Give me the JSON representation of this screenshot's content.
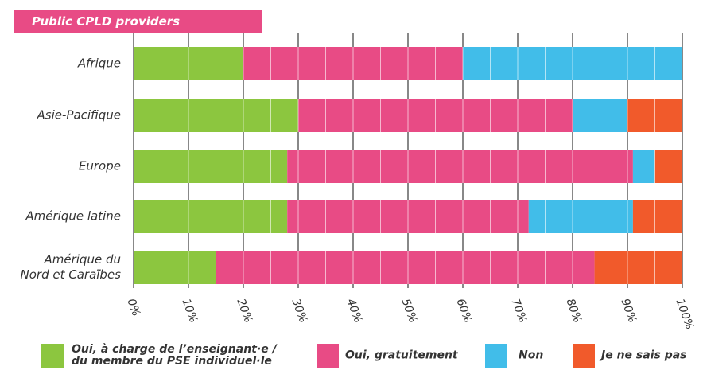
{
  "chart_data": {
    "type": "bar",
    "orientation": "horizontal",
    "stacked": true,
    "title": "Public CPLD providers",
    "categories": [
      "Afrique",
      "Asie-Pacifique",
      "Europe",
      "Amérique latine",
      "Amérique du\nNord et Caraïbes"
    ],
    "series": [
      {
        "name": "Oui, à charge de l’enseignant·e /\ndu membre du PSE individuel·le",
        "color": "#8cc63f",
        "values": [
          20,
          30,
          28,
          28,
          15
        ]
      },
      {
        "name": "Oui, gratuitement",
        "color": "#e84b85",
        "values": [
          40,
          50,
          63,
          44,
          69
        ]
      },
      {
        "name": "Non",
        "color": "#41bde9",
        "values": [
          40,
          10,
          4,
          19,
          0
        ]
      },
      {
        "name": "Je ne sais pas",
        "color": "#f15a2b",
        "values": [
          0,
          10,
          5,
          9,
          16
        ]
      }
    ],
    "xlim": [
      0,
      100
    ],
    "xticks": [
      {
        "value": 0,
        "label": "0%"
      },
      {
        "value": 10,
        "label": "10%"
      },
      {
        "value": 20,
        "label": "20%"
      },
      {
        "value": 30,
        "label": "30%"
      },
      {
        "value": 40,
        "label": "40%"
      },
      {
        "value": 50,
        "label": "50%"
      },
      {
        "value": 60,
        "label": "60%"
      },
      {
        "value": 70,
        "label": "70%"
      },
      {
        "value": 80,
        "label": "80%"
      },
      {
        "value": 90,
        "label": "90%"
      },
      {
        "value": 100,
        "label": "100%"
      }
    ],
    "grid": true,
    "legend": "bottom"
  }
}
